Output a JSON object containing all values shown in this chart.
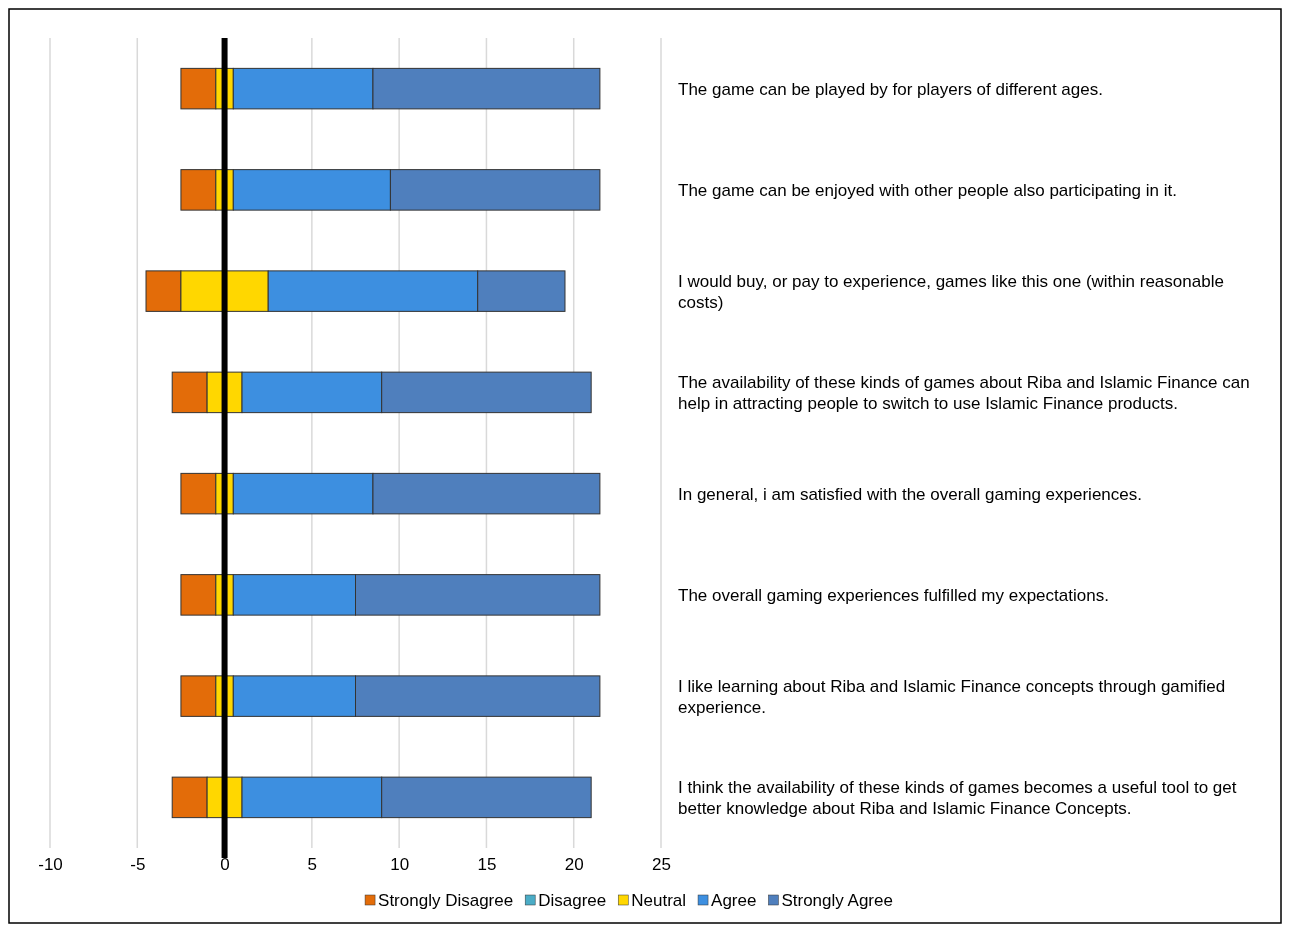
{
  "chart_data": {
    "type": "bar",
    "orientation": "horizontal",
    "categories": [
      "The game can be played by for players of different ages.",
      "The game can be enjoyed with other people also participating in it.",
      "I would buy, or pay to experience, games like this one (within reasonable costs)",
      "The availability of these kinds of games about Riba and Islamic Finance can help in attracting people to switch to use Islamic Finance products.",
      "In general, i am satisfied with the overall gaming experiences.",
      "The overall gaming experiences fulfilled my expectations.",
      "I like learning about Riba and Islamic Finance concepts through gamified experience.",
      "I think the availability of these kinds of games becomes a useful tool to get better knowledge about Riba and Islamic Finance Concepts."
    ],
    "series": [
      {
        "name": "Strongly Disagree",
        "color": "#e36c09",
        "base": [
          -2.5,
          -2.5,
          -4.5,
          -3,
          -2.5,
          -2.5,
          -2.5,
          -3
        ],
        "values": [
          2,
          2,
          2,
          2,
          2,
          2,
          2,
          2
        ]
      },
      {
        "name": "Disagree",
        "color": "#4bacc6",
        "values": [
          null,
          null,
          null,
          null,
          null,
          null,
          null,
          null
        ]
      },
      {
        "name": "Neutral",
        "color": "#ffd700",
        "base": [
          -0.5,
          -0.5,
          -2.5,
          -1,
          -0.5,
          -0.5,
          -0.5,
          -1
        ],
        "values": [
          1,
          1,
          5,
          2,
          1,
          1,
          1,
          2
        ]
      },
      {
        "name": "Agree",
        "color": "#3d8fe0",
        "base": [
          0.5,
          0.5,
          2.5,
          1,
          0.5,
          0.5,
          0.5,
          1
        ],
        "values": [
          8,
          9,
          12,
          8,
          8,
          7,
          7,
          8
        ]
      },
      {
        "name": "Strongly Agree",
        "color": "#4f7fbd",
        "base": [
          8.5,
          9.5,
          14.5,
          9,
          8.5,
          7.5,
          7.5,
          9
        ],
        "values": [
          13,
          12,
          5,
          12,
          13,
          14,
          14,
          12
        ]
      }
    ],
    "xlim": [
      -10,
      25
    ],
    "xticks": [
      -10,
      -5,
      0,
      5,
      10,
      15,
      20,
      25
    ],
    "grid": "x",
    "legend": "bottom"
  }
}
